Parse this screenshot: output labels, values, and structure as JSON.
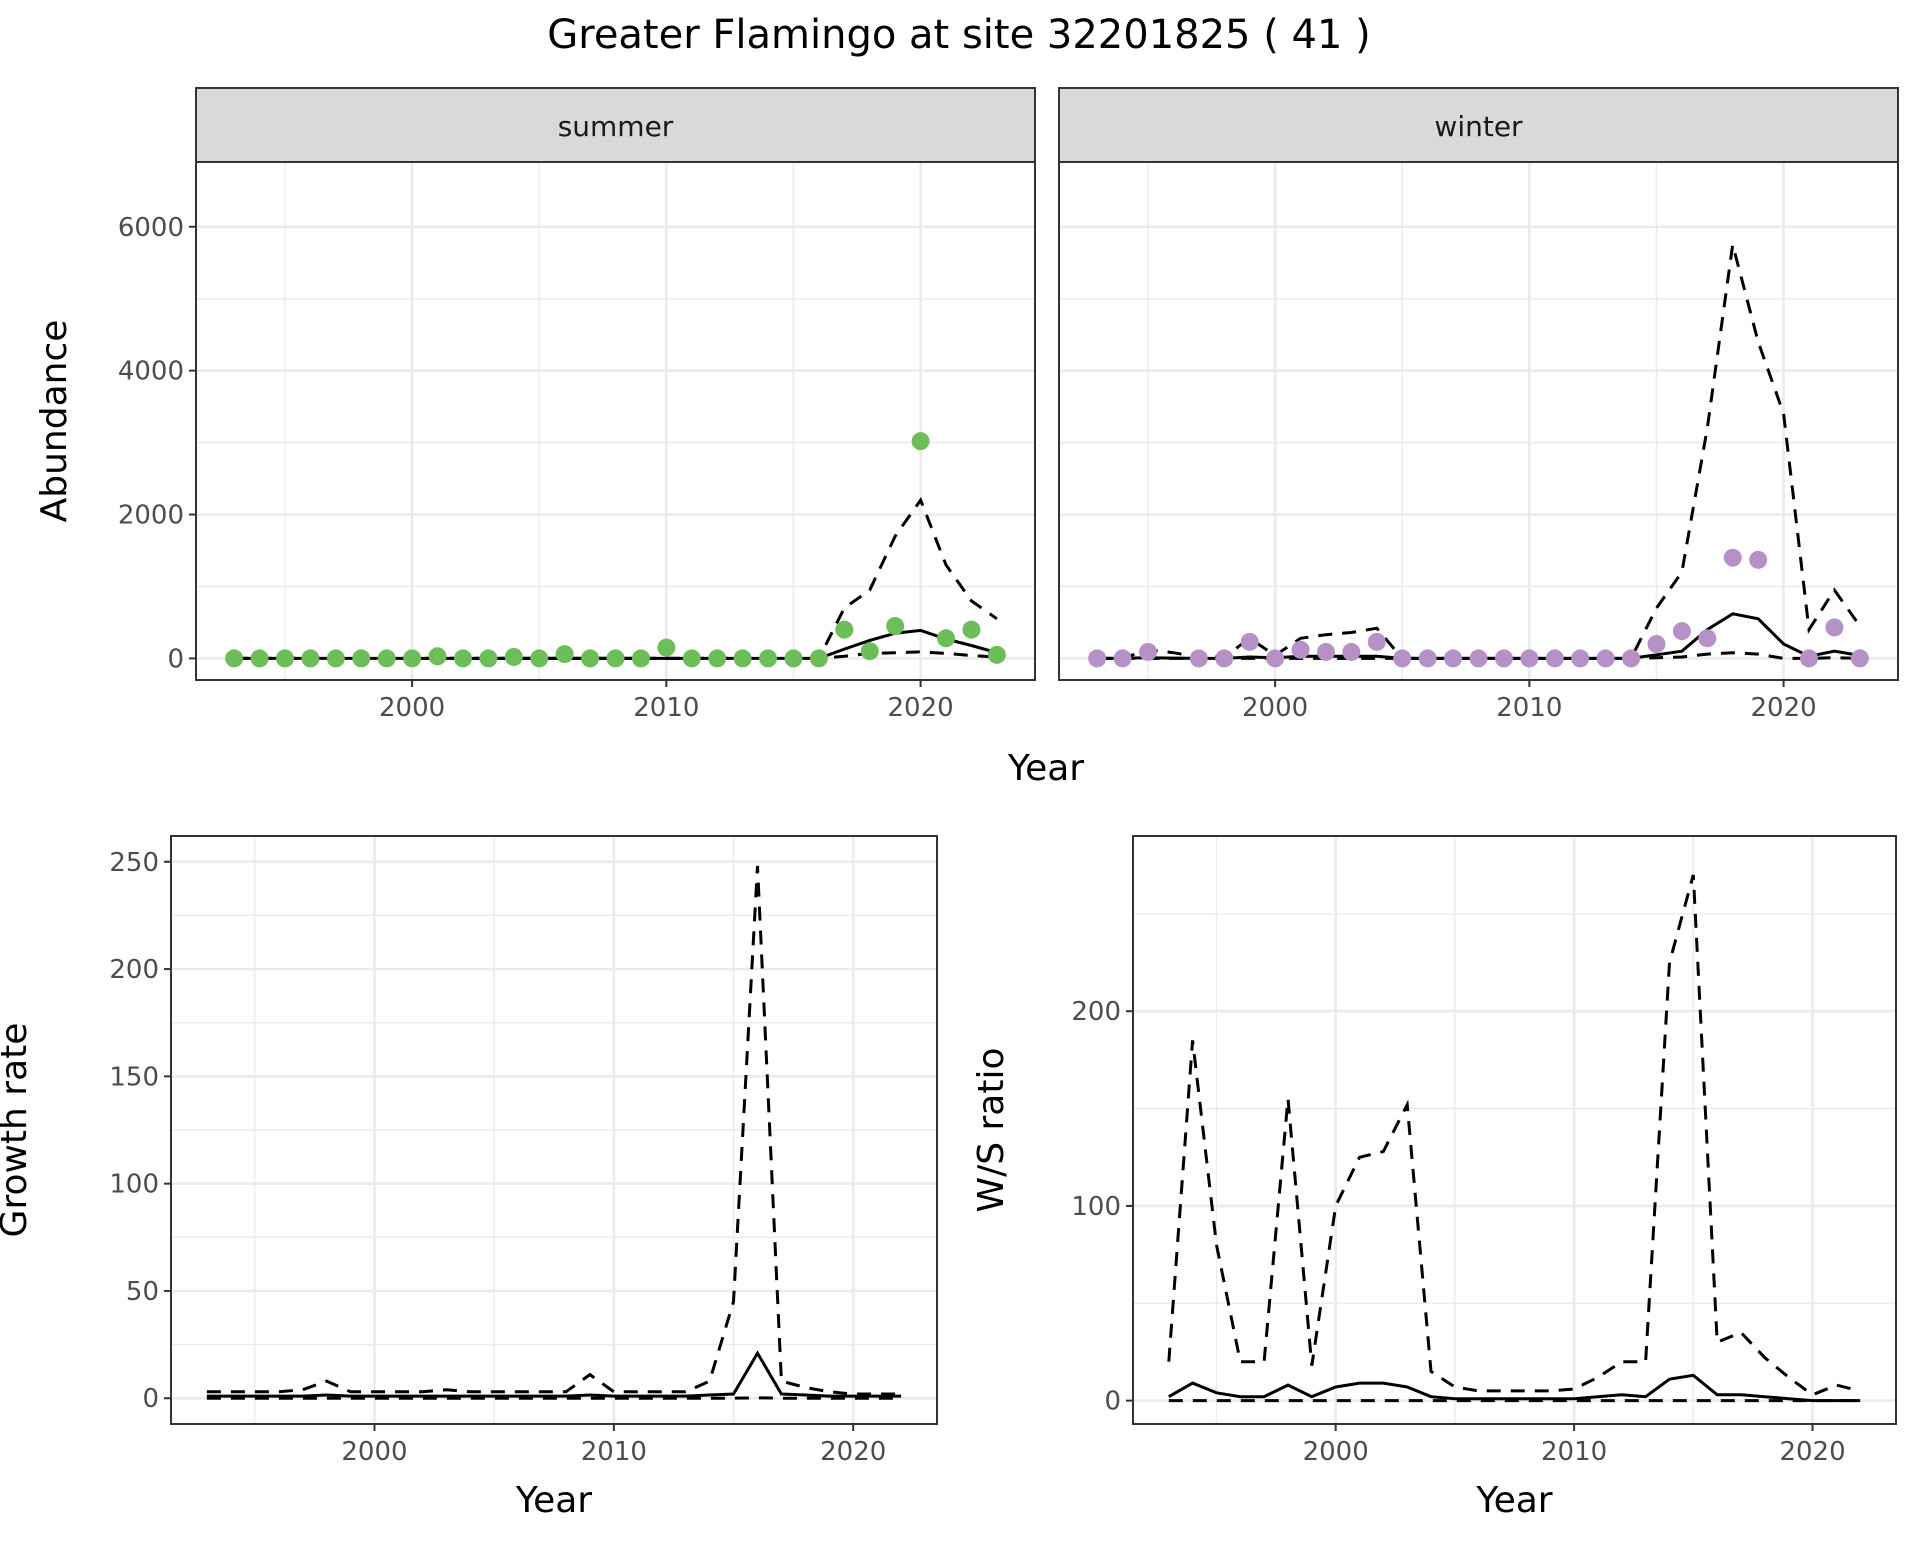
{
  "title": "Greater Flamingo at site 32201825 ( 41 )",
  "colors": {
    "summer": "#6dbd5a",
    "winter": "#b591c8",
    "line": "#000000",
    "strip": "#d9d9d9",
    "grid": "#ebebeb"
  },
  "chart_data": [
    {
      "type": "scatter+line",
      "facet": "summer",
      "xlabel": "Year",
      "ylabel": "Abundance",
      "xlim": [
        1991.5,
        2024.5
      ],
      "ylim": [
        -300,
        6900
      ],
      "xticks": [
        2000,
        2010,
        2020
      ],
      "yticks": [
        0,
        2000,
        4000,
        6000
      ],
      "grid": true,
      "x": [
        1993,
        1994,
        1995,
        1996,
        1997,
        1998,
        1999,
        2000,
        2001,
        2002,
        2003,
        2004,
        2005,
        2006,
        2007,
        2008,
        2009,
        2010,
        2011,
        2012,
        2013,
        2014,
        2015,
        2016,
        2017,
        2018,
        2019,
        2020,
        2021,
        2022,
        2023
      ],
      "points": [
        0,
        0,
        0,
        0,
        0,
        0,
        0,
        0,
        30,
        0,
        0,
        20,
        0,
        60,
        0,
        0,
        0,
        150,
        0,
        0,
        0,
        0,
        0,
        0,
        400,
        100,
        450,
        3020,
        280,
        400,
        50
      ],
      "mean": [
        0,
        0,
        0,
        0,
        0,
        0,
        0,
        0,
        0,
        0,
        0,
        0,
        0,
        0,
        0,
        0,
        0,
        0,
        0,
        0,
        0,
        0,
        0,
        0,
        130,
        250,
        350,
        390,
        270,
        180,
        80
      ],
      "upper": [
        0,
        0,
        0,
        0,
        0,
        0,
        0,
        0,
        0,
        0,
        0,
        0,
        0,
        0,
        0,
        0,
        0,
        0,
        0,
        0,
        0,
        0,
        0,
        0,
        700,
        950,
        1700,
        2200,
        1300,
        800,
        550
      ],
      "lower": [
        0,
        0,
        0,
        0,
        0,
        0,
        0,
        0,
        0,
        0,
        0,
        0,
        0,
        0,
        0,
        0,
        0,
        0,
        0,
        0,
        0,
        0,
        0,
        0,
        30,
        70,
        80,
        90,
        70,
        40,
        20
      ]
    },
    {
      "type": "scatter+line",
      "facet": "winter",
      "xlabel": "Year",
      "ylabel": "Abundance",
      "xlim": [
        1991.5,
        2024.5
      ],
      "ylim": [
        -300,
        6900
      ],
      "xticks": [
        2000,
        2010,
        2020
      ],
      "yticks": [
        0,
        2000,
        4000,
        6000
      ],
      "grid": true,
      "x": [
        1993,
        1994,
        1995,
        1996,
        1997,
        1998,
        1999,
        2000,
        2001,
        2002,
        2003,
        2004,
        2005,
        2006,
        2007,
        2008,
        2009,
        2010,
        2011,
        2012,
        2013,
        2014,
        2015,
        2016,
        2017,
        2018,
        2019,
        2020,
        2021,
        2022,
        2023
      ],
      "points": [
        0,
        0,
        90,
        null,
        0,
        0,
        230,
        0,
        120,
        90,
        90,
        230,
        0,
        0,
        0,
        0,
        0,
        0,
        0,
        0,
        0,
        0,
        200,
        380,
        280,
        1400,
        1370,
        null,
        0,
        430,
        0
      ],
      "mean": [
        0,
        0,
        10,
        5,
        0,
        0,
        20,
        10,
        30,
        30,
        30,
        30,
        0,
        0,
        0,
        0,
        0,
        0,
        0,
        0,
        0,
        0,
        50,
        100,
        400,
        620,
        550,
        200,
        30,
        100,
        40
      ],
      "upper": [
        0,
        0,
        120,
        80,
        20,
        20,
        280,
        40,
        280,
        330,
        360,
        420,
        0,
        0,
        0,
        0,
        0,
        0,
        0,
        0,
        0,
        0,
        700,
        1200,
        3200,
        5750,
        4400,
        3400,
        400,
        950,
        450
      ],
      "lower": [
        0,
        0,
        0,
        0,
        0,
        0,
        0,
        0,
        0,
        0,
        0,
        0,
        0,
        0,
        0,
        0,
        0,
        0,
        0,
        0,
        0,
        0,
        10,
        20,
        60,
        80,
        60,
        0,
        0,
        10,
        0
      ]
    },
    {
      "type": "line",
      "facet": "",
      "xlabel": "Year",
      "ylabel": "Growth rate",
      "xlim": [
        1991.5,
        2023.5
      ],
      "ylim": [
        -12,
        262
      ],
      "xticks": [
        2000,
        2010,
        2020
      ],
      "yticks": [
        0,
        50,
        100,
        150,
        200,
        250
      ],
      "grid": true,
      "x": [
        1993,
        1994,
        1995,
        1996,
        1997,
        1998,
        1999,
        2000,
        2001,
        2002,
        2003,
        2004,
        2005,
        2006,
        2007,
        2008,
        2009,
        2010,
        2011,
        2012,
        2013,
        2014,
        2015,
        2016,
        2017,
        2018,
        2019,
        2020,
        2021,
        2022
      ],
      "mean": [
        1,
        1,
        1,
        1,
        1,
        1.5,
        1,
        1,
        1,
        1,
        1,
        1,
        1,
        1,
        1,
        1,
        1.5,
        1,
        1,
        1,
        1,
        1.5,
        2,
        21,
        2,
        1.5,
        1,
        1,
        1,
        1
      ],
      "upper": [
        3,
        3,
        3,
        3,
        4,
        8,
        3,
        3,
        3,
        3,
        4,
        3,
        3,
        3,
        3,
        3,
        11,
        3,
        3,
        3,
        3,
        8,
        45,
        248,
        8,
        5,
        3,
        2,
        2,
        2
      ],
      "lower": [
        0,
        0,
        0,
        0,
        0,
        0,
        0,
        0,
        0,
        0,
        0,
        0,
        0,
        0,
        0,
        0,
        0,
        0,
        0,
        0,
        0,
        0,
        0,
        0.2,
        0,
        0,
        0,
        0,
        0,
        0
      ]
    },
    {
      "type": "line",
      "facet": "",
      "xlabel": "Year",
      "ylabel": "W/S ratio",
      "xlim": [
        1991.5,
        2023.5
      ],
      "ylim": [
        -12,
        290
      ],
      "xticks": [
        2000,
        2010,
        2020
      ],
      "yticks": [
        0,
        100,
        200
      ],
      "grid": true,
      "x": [
        1993,
        1994,
        1995,
        1996,
        1997,
        1998,
        1999,
        2000,
        2001,
        2002,
        2003,
        2004,
        2005,
        2006,
        2007,
        2008,
        2009,
        2010,
        2011,
        2012,
        2013,
        2014,
        2015,
        2016,
        2017,
        2018,
        2019,
        2020,
        2021,
        2022
      ],
      "mean": [
        2,
        9,
        4,
        2,
        2,
        8,
        2,
        7,
        9,
        9,
        7,
        2,
        1,
        1,
        1,
        1,
        1,
        1,
        2,
        3,
        2,
        11,
        13,
        3,
        3,
        2,
        1,
        0,
        0,
        0
      ],
      "upper": [
        20,
        185,
        80,
        20,
        20,
        155,
        18,
        100,
        125,
        128,
        152,
        15,
        7,
        5,
        5,
        5,
        5,
        6,
        12,
        20,
        20,
        225,
        270,
        30,
        35,
        22,
        12,
        3,
        8,
        5
      ],
      "lower": [
        0,
        0,
        0,
        0,
        0,
        0,
        0,
        0,
        0,
        0,
        0,
        0,
        0,
        0,
        0,
        0,
        0,
        0,
        0,
        0,
        0,
        0,
        0,
        0,
        0,
        0,
        0,
        0,
        0,
        0
      ]
    }
  ]
}
